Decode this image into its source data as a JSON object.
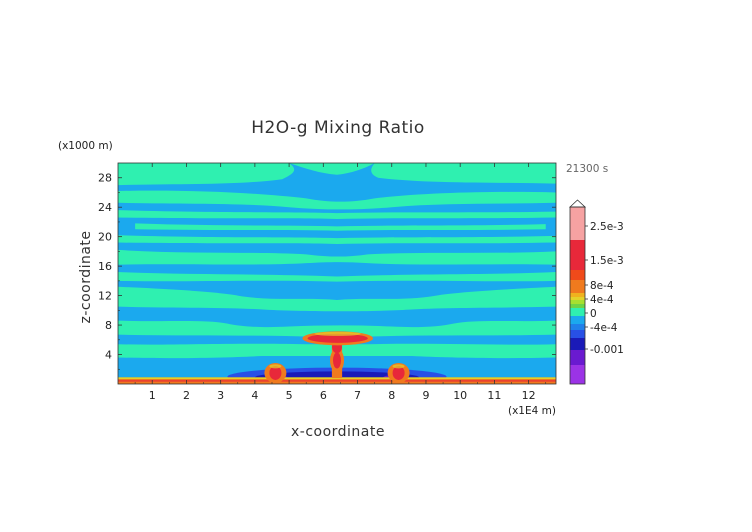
{
  "chart_data": {
    "type": "heatmap",
    "title": "H2O-g Mixing Ratio",
    "xlabel": "x-coordinate",
    "ylabel": "z-coordinate",
    "x_unit": "(x1E4 m)",
    "y_unit": "(x1000 m)",
    "time_label": "21300 s",
    "xlim": [
      0,
      12.8
    ],
    "ylim": [
      0,
      30
    ],
    "x_ticks": [
      "1",
      "2",
      "3",
      "4",
      "5",
      "6",
      "7",
      "8",
      "9",
      "10",
      "11",
      "12"
    ],
    "y_ticks": [
      "4",
      "8",
      "12",
      "16",
      "20",
      "24",
      "28"
    ],
    "colorbar": {
      "labels": [
        "2.5e-3",
        "1.5e-3",
        "8e-4",
        "4e-4",
        "0",
        "-4e-4",
        "-0.001"
      ],
      "colors": {
        "very_high": "#f6a2a2",
        "high": "#e8283a",
        "orange": "#f07a1e",
        "yellow": "#e4d22a",
        "green": "#6ed446",
        "cyan": "#2ff0b0",
        "light_blue": "#1ba9ee",
        "blue": "#2850e6",
        "dark_blue": "#1a1ab8",
        "purple": "#6a1ad0",
        "violet": "#9b33e6"
      }
    },
    "field_description_levels": {
      "background": "0 (cyan) alternating with -4e-4 (light blue) bands",
      "surface_layer": "positive, up to 8e-4",
      "cloud_anvil_z": 6.2,
      "plume_x": [
        4.6,
        6.4,
        8.2
      ]
    }
  }
}
